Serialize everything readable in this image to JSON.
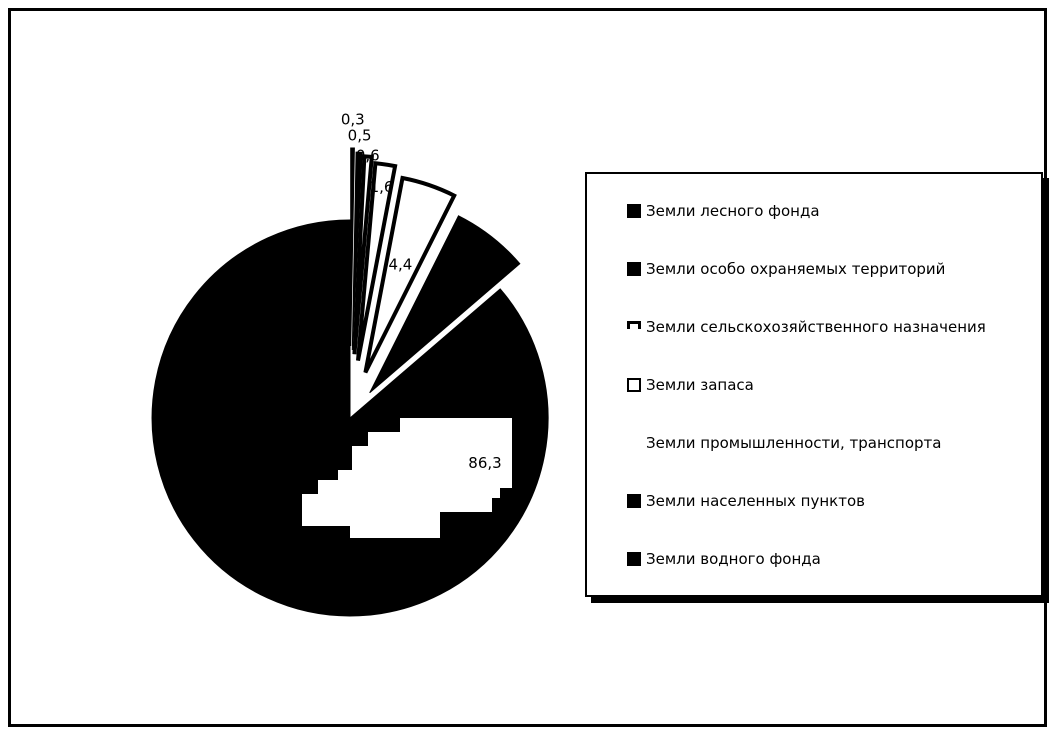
{
  "chart_data": {
    "type": "pie",
    "title": "",
    "legend_placement": "right",
    "slices": [
      {
        "label": "Земли лесного фонда",
        "value": 86.3,
        "value_label": "86,3",
        "style": "solid",
        "exploded": false
      },
      {
        "label": "Земли особо охраняемых территорий",
        "value": 6.3,
        "value_label": "",
        "style": "solid",
        "exploded": true
      },
      {
        "label": "Земли сельскохозяйственного назначения",
        "value": 4.4,
        "value_label": "4,4",
        "style": "outline",
        "exploded": true
      },
      {
        "label": "Земли запаса",
        "value": 1.6,
        "value_label": "1,6",
        "style": "outline",
        "exploded": true
      },
      {
        "label": "Земли промышленности, транспорта",
        "value": 0.6,
        "value_label": "0,6",
        "style": "outline",
        "exploded": true
      },
      {
        "label": "Земли населенных пунктов",
        "value": 0.5,
        "value_label": "0,5",
        "style": "solid",
        "exploded": true
      },
      {
        "label": "Земли водного фонда",
        "value": 0.3,
        "value_label": "0,3",
        "style": "solid",
        "exploded": true
      }
    ]
  },
  "legend": {
    "items": [
      {
        "label": "Земли лесного фонда",
        "swatch": "solid"
      },
      {
        "label": "Земли особо охраняемых территорий",
        "swatch": "solid"
      },
      {
        "label": "Земли сельскохозяйственного назначения",
        "swatch": "topbar"
      },
      {
        "label": "Земли запаса",
        "swatch": "hollow"
      },
      {
        "label": "Земли промышленности, транспорта",
        "swatch": "none"
      },
      {
        "label": "Земли населенных пунктов",
        "swatch": "solid"
      },
      {
        "label": "Земли водного фонда",
        "swatch": "solid"
      }
    ]
  }
}
